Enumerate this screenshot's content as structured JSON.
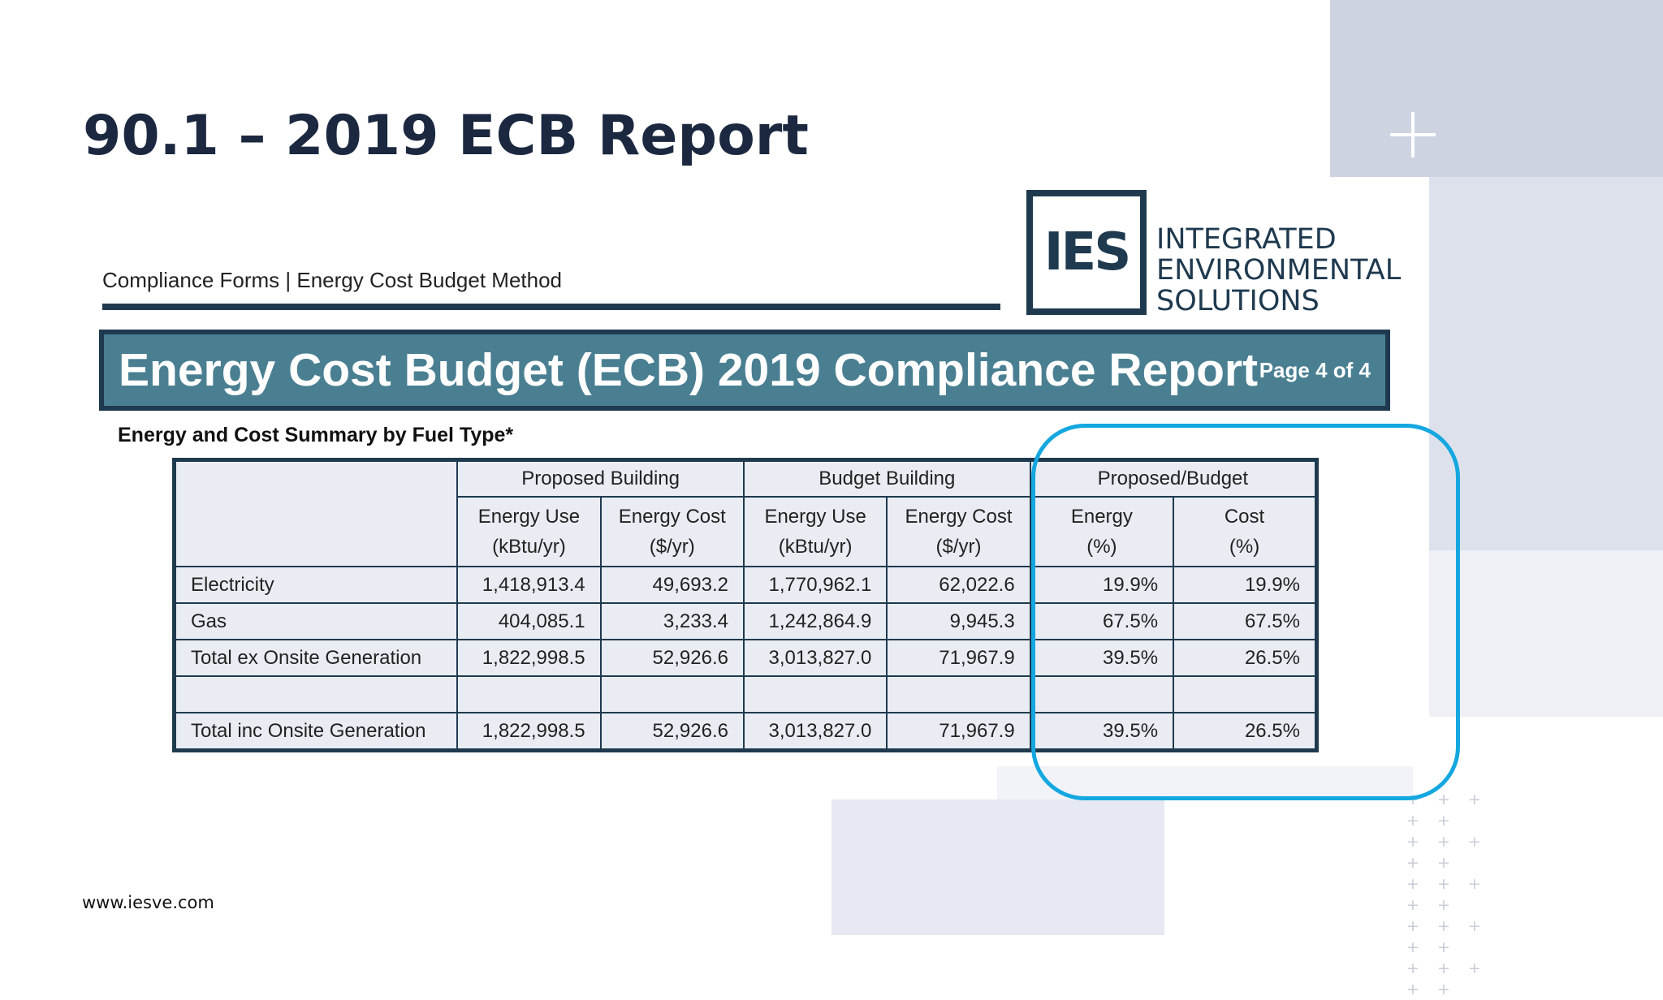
{
  "slide": {
    "title": "90.1 – 2019 ECB Report",
    "website": "www.iesve.com",
    "plus_pattern": "+ + + + +"
  },
  "report": {
    "header_subtitle": "Compliance Forms | Energy Cost Budget Method",
    "logo": {
      "mark": "IES",
      "line1": "INTEGRATED",
      "line2": "ENVIRONMENTAL",
      "line3": "SOLUTIONS"
    },
    "banner_title": "Energy Cost Budget (ECB) 2019 Compliance Report",
    "page_indicator": "Page 4 of 4",
    "section_heading": "Energy and Cost Summary by Fuel Type*",
    "table": {
      "group_headers": [
        "Proposed Building",
        "Budget Building",
        "Proposed/Budget"
      ],
      "sub_headers": [
        {
          "line1": "Energy Use",
          "line2": "(kBtu/yr)"
        },
        {
          "line1": "Energy Cost",
          "line2": "($/yr)"
        },
        {
          "line1": "Energy Use",
          "line2": "(kBtu/yr)"
        },
        {
          "line1": "Energy Cost",
          "line2": "($/yr)"
        },
        {
          "line1": "Energy",
          "line2": "(%)"
        },
        {
          "line1": "Cost",
          "line2": "(%)"
        }
      ],
      "rows": [
        {
          "label": "Electricity",
          "values": [
            "1,418,913.4",
            "49,693.2",
            "1,770,962.1",
            "62,022.6",
            "19.9%",
            "19.9%"
          ]
        },
        {
          "label": "Gas",
          "values": [
            "404,085.1",
            "3,233.4",
            "1,242,864.9",
            "9,945.3",
            "67.5%",
            "67.5%"
          ]
        },
        {
          "label": "Total ex Onsite Generation",
          "values": [
            "1,822,998.5",
            "52,926.6",
            "3,013,827.0",
            "71,967.9",
            "39.5%",
            "26.5%"
          ]
        },
        {
          "label": "",
          "values": [
            "",
            "",
            "",
            "",
            "",
            ""
          ]
        },
        {
          "label": "Total inc Onsite Generation",
          "values": [
            "1,822,998.5",
            "52,926.6",
            "3,013,827.0",
            "71,967.9",
            "39.5%",
            "26.5%"
          ]
        }
      ]
    }
  },
  "colors": {
    "title": "#1b2840",
    "navy": "#1f3a4f",
    "banner": "#4a7f92",
    "table_fill": "#e9edf3",
    "highlight": "#14a7e0"
  }
}
